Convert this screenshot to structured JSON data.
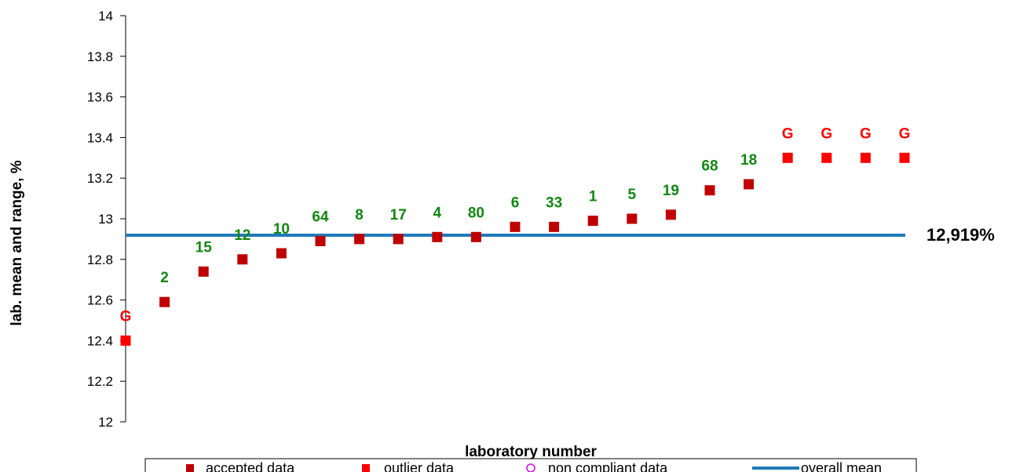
{
  "chart_data": {
    "type": "scatter",
    "title": "",
    "xlabel": "laboratory number",
    "ylabel": "lab. mean and range, %",
    "ylim": [
      12,
      14
    ],
    "yticks": [
      "12",
      "12.2",
      "12.4",
      "12.6",
      "12.8",
      "13",
      "13.2",
      "13.4",
      "13.6",
      "13.8",
      "14"
    ],
    "grid": false,
    "legend_position": "bottom",
    "overall_mean": 12.919,
    "overall_mean_label": "12,919%",
    "points": [
      {
        "label": "G",
        "y": 12.4,
        "kind": "outlier"
      },
      {
        "label": "2",
        "y": 12.59,
        "kind": "accepted"
      },
      {
        "label": "15",
        "y": 12.74,
        "kind": "accepted"
      },
      {
        "label": "12",
        "y": 12.8,
        "kind": "accepted"
      },
      {
        "label": "10",
        "y": 12.83,
        "kind": "accepted"
      },
      {
        "label": "64",
        "y": 12.89,
        "kind": "accepted"
      },
      {
        "label": "8",
        "y": 12.9,
        "kind": "accepted"
      },
      {
        "label": "17",
        "y": 12.9,
        "kind": "accepted"
      },
      {
        "label": "4",
        "y": 12.91,
        "kind": "accepted"
      },
      {
        "label": "80",
        "y": 12.91,
        "kind": "accepted"
      },
      {
        "label": "6",
        "y": 12.96,
        "kind": "accepted"
      },
      {
        "label": "33",
        "y": 12.96,
        "kind": "accepted"
      },
      {
        "label": "1",
        "y": 12.99,
        "kind": "accepted"
      },
      {
        "label": "5",
        "y": 13.0,
        "kind": "accepted"
      },
      {
        "label": "19",
        "y": 13.02,
        "kind": "accepted"
      },
      {
        "label": "68",
        "y": 13.14,
        "kind": "accepted"
      },
      {
        "label": "18",
        "y": 13.17,
        "kind": "accepted"
      },
      {
        "label": "G",
        "y": 13.3,
        "kind": "outlier"
      },
      {
        "label": "G",
        "y": 13.3,
        "kind": "outlier"
      },
      {
        "label": "G",
        "y": 13.3,
        "kind": "outlier"
      },
      {
        "label": "G",
        "y": 13.3,
        "kind": "outlier"
      }
    ],
    "legend": [
      {
        "label": "accepted data",
        "marker": "square",
        "color": "#c00000"
      },
      {
        "label": "outlier data",
        "marker": "square",
        "color": "#ff0000"
      },
      {
        "label": "non compliant data",
        "marker": "circle",
        "color": "#e000e0"
      },
      {
        "label": "overall mean",
        "marker": "line",
        "color": "#1f7ab8"
      }
    ]
  },
  "colors": {
    "accepted": "#c00000",
    "outlier": "#ff0000",
    "accepted_label": "#118811",
    "outlier_label": "#ff0000",
    "mean_line": "#1f7ab8",
    "non_compliant": "#e000e0"
  }
}
